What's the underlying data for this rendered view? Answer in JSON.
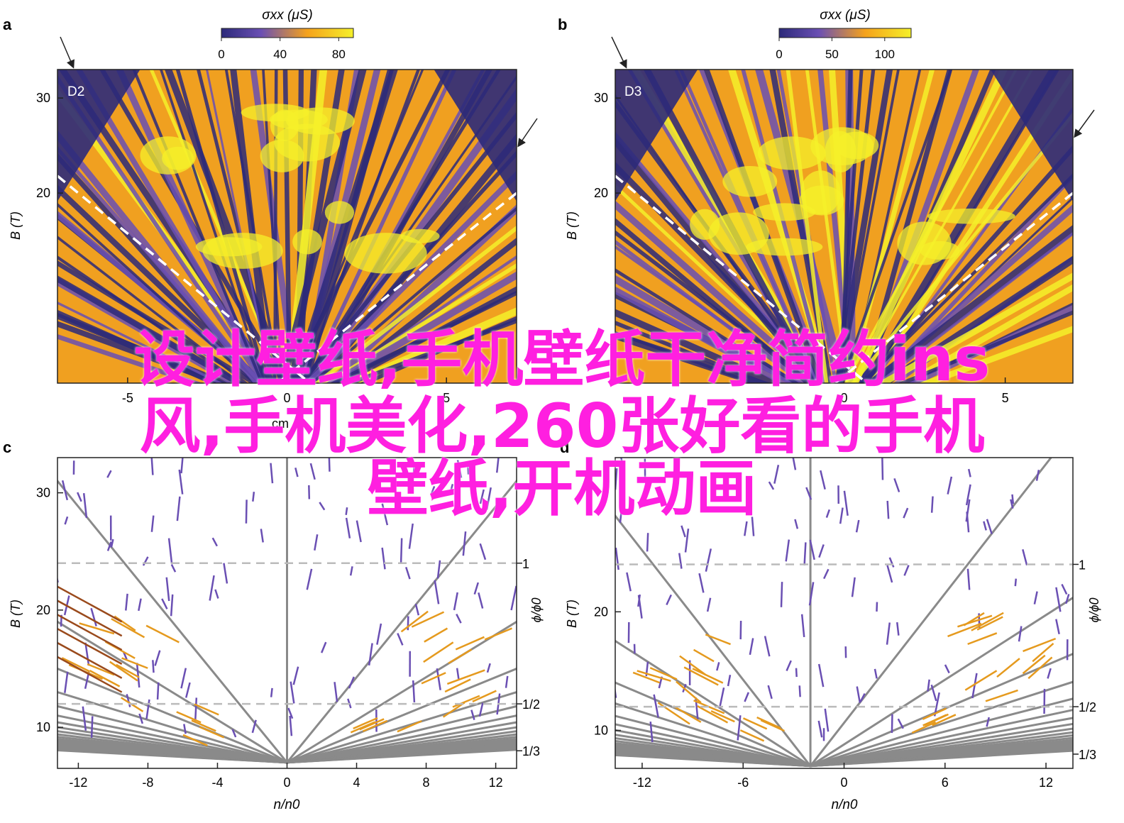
{
  "colors": {
    "cmap_low": "#2c2a7a",
    "cmap_mid1": "#6a4fb3",
    "cmap_mid2": "#f5a21c",
    "cmap_high": "#f5f02a",
    "grey_line": "#8a8a8a",
    "purple_line": "#6a4fb3",
    "orange_line": "#e59a1e",
    "brown_line": "#9a4a1c",
    "dashed_guide": "#bbbbbb",
    "overlay_text": "#ff1fe0"
  },
  "overlay_text": {
    "line1": "设计壁纸,手机壁纸干净简约ins",
    "line2": "风,手机美化,260张好看的手机",
    "line3": "壁纸,开机动画"
  },
  "chart_data": [
    {
      "panel": "a",
      "type": "heatmap",
      "label": "D2",
      "xlabel_partial": "cm",
      "ylabel": "B (T)",
      "ylim": [
        0,
        33
      ],
      "yticks": [
        20,
        30
      ],
      "xticks": [
        -5,
        0,
        5
      ],
      "colorbar": {
        "title": "σxx (μS)",
        "ticks": [
          0,
          40,
          80
        ],
        "range": [
          0,
          90
        ]
      },
      "dashed_boundary": "V-shaped white dashed lines",
      "arrows": [
        "top-left",
        "right edge"
      ]
    },
    {
      "panel": "b",
      "type": "heatmap",
      "label": "D3",
      "ylabel": "B (T)",
      "ylim": [
        0,
        33
      ],
      "yticks": [
        20,
        30
      ],
      "xticks": [
        0,
        5
      ],
      "colorbar": {
        "title": "σxx (μS)",
        "ticks": [
          0,
          50,
          100
        ],
        "range": [
          0,
          125
        ]
      },
      "dashed_boundary": "V-shaped white dashed lines",
      "arrows": [
        "top-left",
        "right edge"
      ]
    },
    {
      "panel": "c",
      "type": "line",
      "xlabel": "n/n0",
      "ylabel": "B (T)",
      "right_label": "ϕ/ϕ0",
      "xlim": [
        -13.2,
        13.2
      ],
      "ylim": [
        6.5,
        33
      ],
      "xticks": [
        -12,
        -8,
        -4,
        0,
        4,
        8,
        12
      ],
      "yticks": [
        10,
        20,
        30
      ],
      "right_ticks": [
        {
          "label": "1",
          "B": 24
        },
        {
          "label": "1/2",
          "B": 12
        },
        {
          "label": "1/3",
          "B": 8
        }
      ],
      "fan_vertex": {
        "x": 0,
        "y": 7
      },
      "series": [
        {
          "color": "grey_line",
          "kind": "straight fan lines"
        },
        {
          "color": "purple_line",
          "kind": "short segments"
        },
        {
          "color": "orange_line",
          "kind": "segments at low B, large |n|"
        },
        {
          "color": "brown_line",
          "kind": "segments at low B, left edge"
        }
      ]
    },
    {
      "panel": "d",
      "type": "line",
      "xlabel": "n/n0",
      "ylabel": "B (T)",
      "right_label": "ϕ/ϕ0",
      "xlim": [
        -13.6,
        13.6
      ],
      "ylim": [
        6.8,
        33
      ],
      "xticks": [
        -12,
        -6,
        0,
        6,
        12
      ],
      "yticks": [
        10,
        20
      ],
      "right_ticks": [
        {
          "label": "1",
          "B": 24
        },
        {
          "label": "1/2",
          "B": 12
        },
        {
          "label": "1/3",
          "B": 8
        }
      ],
      "fan_vertex": {
        "x": -2,
        "y": 7
      },
      "series": [
        {
          "color": "grey_line",
          "kind": "straight fan lines"
        },
        {
          "color": "purple_line",
          "kind": "connected segments"
        },
        {
          "color": "orange_line",
          "kind": "segments at low B"
        }
      ]
    }
  ]
}
